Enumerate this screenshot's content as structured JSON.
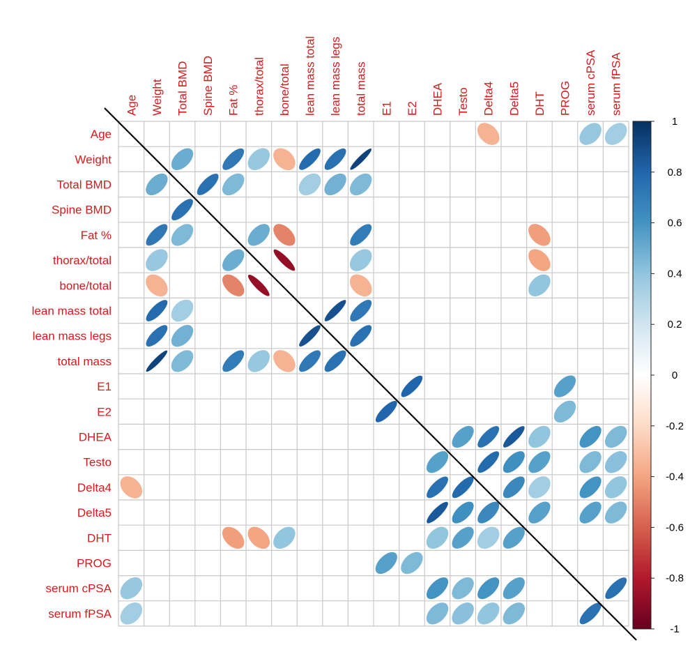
{
  "chart_data": {
    "type": "heatmap",
    "variables": [
      "Age",
      "Weight",
      "Total BMD",
      "Spine BMD",
      "Fat %",
      "thorax/total",
      "bone/total",
      "lean mass total",
      "lean mass legs",
      "total mass",
      "E1",
      "E2",
      "DHEA",
      "Testo",
      "Delta4",
      "Delta5",
      "DHT",
      "PROG",
      "serum cPSA",
      "serum fPSA"
    ],
    "mark": "ellipse",
    "diagonal_line": true,
    "grid": true,
    "colorbar": {
      "range": [
        -1,
        1
      ],
      "ticks": [
        "1",
        "0.8",
        "0.6",
        "0.4",
        "0.2",
        "0",
        "-0.2",
        "-0.4",
        "-0.6",
        "-0.8",
        "-1"
      ],
      "colors": {
        "neg": "#67001f",
        "zero": "#ffffff",
        "pos": "#053061"
      }
    },
    "label_color": "#d7191c",
    "correlations": [
      [
        0,
        14,
        -0.35
      ],
      [
        1,
        2,
        0.5
      ],
      [
        1,
        4,
        0.72
      ],
      [
        1,
        5,
        0.38
      ],
      [
        1,
        6,
        -0.35
      ],
      [
        1,
        7,
        0.78
      ],
      [
        1,
        8,
        0.75
      ],
      [
        1,
        9,
        0.93
      ],
      [
        2,
        3,
        0.75
      ],
      [
        2,
        7,
        0.35
      ],
      [
        2,
        9,
        0.45
      ],
      [
        4,
        5,
        0.5
      ],
      [
        4,
        6,
        -0.5
      ],
      [
        4,
        9,
        0.7
      ],
      [
        4,
        16,
        -0.42
      ],
      [
        5,
        6,
        -0.88
      ],
      [
        5,
        9,
        0.38
      ],
      [
        5,
        16,
        -0.4
      ],
      [
        6,
        9,
        -0.35
      ],
      [
        6,
        16,
        0.4
      ],
      [
        7,
        8,
        0.88
      ],
      [
        7,
        9,
        0.72
      ],
      [
        8,
        9,
        0.75
      ],
      [
        10,
        11,
        0.8
      ],
      [
        10,
        17,
        0.55
      ],
      [
        11,
        17,
        0.45
      ],
      [
        12,
        13,
        0.55
      ],
      [
        12,
        14,
        0.75
      ],
      [
        12,
        15,
        0.85
      ],
      [
        12,
        16,
        0.4
      ],
      [
        12,
        18,
        0.6
      ],
      [
        12,
        19,
        0.45
      ],
      [
        13,
        14,
        0.78
      ],
      [
        13,
        15,
        0.62
      ],
      [
        13,
        16,
        0.55
      ],
      [
        13,
        18,
        0.45
      ],
      [
        13,
        19,
        0.42
      ],
      [
        14,
        15,
        0.65
      ],
      [
        14,
        16,
        0.35
      ],
      [
        14,
        18,
        0.6
      ],
      [
        14,
        19,
        0.4
      ],
      [
        15,
        16,
        0.55
      ],
      [
        15,
        18,
        0.55
      ],
      [
        15,
        19,
        0.45
      ],
      [
        0,
        18,
        0.38
      ],
      [
        0,
        19,
        0.35
      ],
      [
        2,
        8,
        0.48
      ],
      [
        2,
        4,
        0.45
      ],
      [
        9,
        7,
        0.72
      ],
      [
        18,
        19,
        0.75
      ]
    ]
  }
}
